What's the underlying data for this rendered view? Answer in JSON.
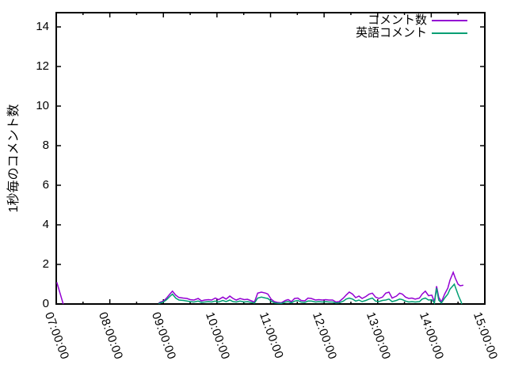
{
  "y_axis_label": "1秒毎のコメント数",
  "legend": {
    "entries": [
      {
        "label": "コメント数",
        "color": "#9400D3"
      },
      {
        "label": "英語コメント",
        "color": "#009E73"
      }
    ]
  },
  "chart_data": {
    "type": "line",
    "title": "",
    "xlabel": "",
    "ylabel": "1秒毎のコメント数",
    "x_range": [
      7,
      15
    ],
    "y_range": [
      0,
      14.72
    ],
    "grid": false,
    "legend_position": "top-right-inside",
    "x_ticks": [
      {
        "h": 7,
        "label": "07:00:00"
      },
      {
        "h": 8,
        "label": "08:00:00"
      },
      {
        "h": 9,
        "label": "09:00:00"
      },
      {
        "h": 10,
        "label": "10:00:00"
      },
      {
        "h": 11,
        "label": "11:00:00"
      },
      {
        "h": 12,
        "label": "12:00:00"
      },
      {
        "h": 13,
        "label": "13:00:00"
      },
      {
        "h": 14,
        "label": "14:00:00"
      },
      {
        "h": 15,
        "label": "15:00:00"
      }
    ],
    "y_ticks": [
      0,
      2,
      4,
      6,
      8,
      10,
      12,
      14
    ],
    "series": [
      {
        "name": "コメント数",
        "color": "#9400D3",
        "segments": [
          [
            [
              7.01,
              1.1
            ],
            [
              7.13,
              0
            ]
          ],
          [
            [
              8.91,
              0.05
            ],
            [
              8.95,
              0.1
            ],
            [
              9.0,
              0.15
            ],
            [
              9.06,
              0.3
            ],
            [
              9.12,
              0.5
            ],
            [
              9.17,
              0.65
            ],
            [
              9.23,
              0.45
            ],
            [
              9.29,
              0.33
            ],
            [
              9.37,
              0.3
            ],
            [
              9.44,
              0.28
            ],
            [
              9.5,
              0.22
            ],
            [
              9.57,
              0.2
            ],
            [
              9.65,
              0.28
            ],
            [
              9.71,
              0.16
            ],
            [
              9.77,
              0.2
            ],
            [
              9.84,
              0.22
            ],
            [
              9.9,
              0.2
            ],
            [
              9.97,
              0.3
            ],
            [
              10.03,
              0.22
            ],
            [
              10.11,
              0.35
            ],
            [
              10.17,
              0.25
            ],
            [
              10.24,
              0.4
            ],
            [
              10.3,
              0.28
            ],
            [
              10.36,
              0.2
            ],
            [
              10.43,
              0.28
            ],
            [
              10.51,
              0.22
            ],
            [
              10.57,
              0.24
            ],
            [
              10.64,
              0.16
            ],
            [
              10.7,
              0.1
            ],
            [
              10.76,
              0.55
            ],
            [
              10.83,
              0.6
            ],
            [
              10.91,
              0.55
            ],
            [
              10.95,
              0.5
            ],
            [
              11.01,
              0.25
            ],
            [
              11.07,
              0.12
            ],
            [
              11.13,
              0.08
            ],
            [
              11.2,
              0.06
            ],
            [
              11.28,
              0.18
            ],
            [
              11.33,
              0.22
            ],
            [
              11.39,
              0.12
            ],
            [
              11.45,
              0.28
            ],
            [
              11.51,
              0.3
            ],
            [
              11.57,
              0.18
            ],
            [
              11.64,
              0.16
            ],
            [
              11.7,
              0.3
            ],
            [
              11.76,
              0.28
            ],
            [
              11.84,
              0.2
            ],
            [
              11.9,
              0.22
            ],
            [
              11.97,
              0.2
            ],
            [
              12.03,
              0.22
            ],
            [
              12.09,
              0.2
            ],
            [
              12.16,
              0.2
            ],
            [
              12.22,
              0.1
            ],
            [
              12.28,
              0.12
            ],
            [
              12.36,
              0.3
            ],
            [
              12.41,
              0.45
            ],
            [
              12.47,
              0.6
            ],
            [
              12.53,
              0.5
            ],
            [
              12.59,
              0.32
            ],
            [
              12.65,
              0.4
            ],
            [
              12.71,
              0.28
            ],
            [
              12.78,
              0.38
            ],
            [
              12.84,
              0.5
            ],
            [
              12.9,
              0.55
            ],
            [
              12.96,
              0.35
            ],
            [
              13.02,
              0.28
            ],
            [
              13.09,
              0.35
            ],
            [
              13.15,
              0.55
            ],
            [
              13.21,
              0.6
            ],
            [
              13.27,
              0.3
            ],
            [
              13.35,
              0.4
            ],
            [
              13.41,
              0.55
            ],
            [
              13.46,
              0.5
            ],
            [
              13.52,
              0.35
            ],
            [
              13.58,
              0.28
            ],
            [
              13.64,
              0.3
            ],
            [
              13.7,
              0.25
            ],
            [
              13.78,
              0.3
            ],
            [
              13.83,
              0.5
            ],
            [
              13.89,
              0.65
            ],
            [
              13.95,
              0.42
            ],
            [
              14.01,
              0.45
            ],
            [
              14.06,
              0.1
            ],
            [
              14.1,
              0.9
            ],
            [
              14.14,
              0.35
            ],
            [
              14.19,
              0.1
            ],
            [
              14.25,
              0.5
            ],
            [
              14.31,
              0.8
            ],
            [
              14.35,
              1.2
            ],
            [
              14.41,
              1.6
            ],
            [
              14.45,
              1.3
            ],
            [
              14.5,
              1.0
            ],
            [
              14.54,
              0.92
            ],
            [
              14.6,
              0.95
            ]
          ]
        ]
      },
      {
        "name": "英語コメント",
        "color": "#009E73",
        "segments": [
          [
            [
              8.91,
              0.02
            ],
            [
              8.95,
              0.06
            ],
            [
              9.0,
              0.1
            ],
            [
              9.06,
              0.22
            ],
            [
              9.12,
              0.38
            ],
            [
              9.17,
              0.5
            ],
            [
              9.23,
              0.3
            ],
            [
              9.29,
              0.2
            ],
            [
              9.37,
              0.18
            ],
            [
              9.44,
              0.15
            ],
            [
              9.5,
              0.12
            ],
            [
              9.57,
              0.1
            ],
            [
              9.65,
              0.15
            ],
            [
              9.71,
              0.08
            ],
            [
              9.77,
              0.1
            ],
            [
              9.84,
              0.12
            ],
            [
              9.9,
              0.1
            ],
            [
              9.97,
              0.15
            ],
            [
              10.03,
              0.1
            ],
            [
              10.11,
              0.18
            ],
            [
              10.17,
              0.12
            ],
            [
              10.24,
              0.2
            ],
            [
              10.3,
              0.12
            ],
            [
              10.36,
              0.1
            ],
            [
              10.43,
              0.15
            ],
            [
              10.51,
              0.1
            ],
            [
              10.57,
              0.12
            ],
            [
              10.64,
              0.08
            ],
            [
              10.7,
              0.05
            ],
            [
              10.76,
              0.3
            ],
            [
              10.83,
              0.35
            ],
            [
              10.91,
              0.3
            ],
            [
              10.95,
              0.28
            ],
            [
              11.01,
              0.15
            ],
            [
              11.07,
              0.06
            ],
            [
              11.13,
              0.04
            ],
            [
              11.2,
              0.03
            ],
            [
              11.28,
              0.1
            ],
            [
              11.33,
              0.12
            ],
            [
              11.39,
              0.06
            ],
            [
              11.45,
              0.15
            ],
            [
              11.51,
              0.18
            ],
            [
              11.57,
              0.1
            ],
            [
              11.64,
              0.08
            ],
            [
              11.7,
              0.15
            ],
            [
              11.76,
              0.15
            ],
            [
              11.84,
              0.1
            ],
            [
              11.9,
              0.12
            ],
            [
              11.97,
              0.1
            ],
            [
              12.03,
              0.12
            ],
            [
              12.09,
              0.1
            ],
            [
              12.16,
              0.1
            ],
            [
              12.22,
              0.05
            ],
            [
              12.28,
              0.06
            ],
            [
              12.36,
              0.15
            ],
            [
              12.41,
              0.25
            ],
            [
              12.47,
              0.3
            ],
            [
              12.53,
              0.25
            ],
            [
              12.59,
              0.15
            ],
            [
              12.65,
              0.2
            ],
            [
              12.71,
              0.12
            ],
            [
              12.78,
              0.18
            ],
            [
              12.84,
              0.25
            ],
            [
              12.9,
              0.3
            ],
            [
              12.96,
              0.15
            ],
            [
              13.02,
              0.12
            ],
            [
              13.09,
              0.18
            ],
            [
              13.15,
              0.2
            ],
            [
              13.21,
              0.25
            ],
            [
              13.27,
              0.12
            ],
            [
              13.35,
              0.18
            ],
            [
              13.41,
              0.25
            ],
            [
              13.46,
              0.22
            ],
            [
              13.52,
              0.15
            ],
            [
              13.58,
              0.1
            ],
            [
              13.64,
              0.12
            ],
            [
              13.7,
              0.1
            ],
            [
              13.78,
              0.12
            ],
            [
              13.83,
              0.25
            ],
            [
              13.89,
              0.3
            ],
            [
              13.95,
              0.2
            ],
            [
              14.01,
              0.22
            ],
            [
              14.06,
              0.05
            ],
            [
              14.1,
              0.8
            ],
            [
              14.14,
              0.2
            ],
            [
              14.19,
              0.05
            ],
            [
              14.25,
              0.3
            ],
            [
              14.31,
              0.5
            ],
            [
              14.35,
              0.75
            ],
            [
              14.43,
              1.0
            ],
            [
              14.47,
              0.7
            ],
            [
              14.51,
              0.4
            ],
            [
              14.56,
              0.1
            ],
            [
              14.57,
              0
            ]
          ]
        ]
      }
    ]
  }
}
